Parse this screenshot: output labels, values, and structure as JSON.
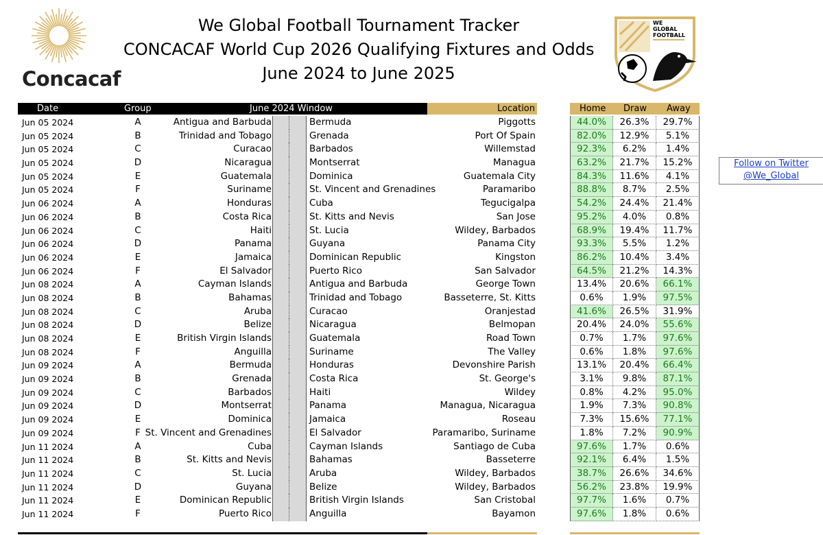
{
  "header": {
    "brand": "Concacaf",
    "title_line1": "We Global Football Tournament Tracker",
    "title_line2": "CONCACAF World Cup 2026 Qualifying Fixtures and Odds",
    "title_line3": "June 2024 to June 2025",
    "logo_text": "WE GLOBAL FOOTBALL"
  },
  "twitter": {
    "line1": "Follow on Twitter",
    "line2": "@We_Global"
  },
  "columns": {
    "date": "Date",
    "group": "Group",
    "window": "June 2024 Window",
    "location": "Location",
    "home": "Home",
    "draw": "Draw",
    "away": "Away"
  },
  "colors": {
    "gold": "#d8b76a",
    "highlight_bg": "#ccf3cc",
    "highlight_text": "#1a7a1a",
    "link": "#1a3ec8"
  },
  "rows": [
    {
      "date": "Jun 05 2024",
      "group": "A",
      "home": "Antigua and Barbuda",
      "away": "Bermuda",
      "location": "Piggotts",
      "h": "44.0%",
      "d": "26.3%",
      "a": "29.7%",
      "hl": "h"
    },
    {
      "date": "Jun 05 2024",
      "group": "B",
      "home": "Trinidad and Tobago",
      "away": "Grenada",
      "location": "Port Of Spain",
      "h": "82.0%",
      "d": "12.9%",
      "a": "5.1%",
      "hl": "h"
    },
    {
      "date": "Jun 05 2024",
      "group": "C",
      "home": "Curacao",
      "away": "Barbados",
      "location": "Willemstad",
      "h": "92.3%",
      "d": "6.2%",
      "a": "1.4%",
      "hl": "h"
    },
    {
      "date": "Jun 05 2024",
      "group": "D",
      "home": "Nicaragua",
      "away": "Montserrat",
      "location": "Managua",
      "h": "63.2%",
      "d": "21.7%",
      "a": "15.2%",
      "hl": "h"
    },
    {
      "date": "Jun 05 2024",
      "group": "E",
      "home": "Guatemala",
      "away": "Dominica",
      "location": "Guatemala City",
      "h": "84.3%",
      "d": "11.6%",
      "a": "4.1%",
      "hl": "h"
    },
    {
      "date": "Jun 05 2024",
      "group": "F",
      "home": "Suriname",
      "away": "St. Vincent and Grenadines",
      "location": "Paramaribo",
      "h": "88.8%",
      "d": "8.7%",
      "a": "2.5%",
      "hl": "h"
    },
    {
      "date": "Jun 06 2024",
      "group": "A",
      "home": "Honduras",
      "away": "Cuba",
      "location": "Tegucigalpa",
      "h": "54.2%",
      "d": "24.4%",
      "a": "21.4%",
      "hl": "h"
    },
    {
      "date": "Jun 06 2024",
      "group": "B",
      "home": "Costa Rica",
      "away": "St. Kitts and Nevis",
      "location": "San Jose",
      "h": "95.2%",
      "d": "4.0%",
      "a": "0.8%",
      "hl": "h"
    },
    {
      "date": "Jun 06 2024",
      "group": "C",
      "home": "Haiti",
      "away": "St. Lucia",
      "location": "Wildey, Barbados",
      "h": "68.9%",
      "d": "19.4%",
      "a": "11.7%",
      "hl": "h"
    },
    {
      "date": "Jun 06 2024",
      "group": "D",
      "home": "Panama",
      "away": "Guyana",
      "location": "Panama City",
      "h": "93.3%",
      "d": "5.5%",
      "a": "1.2%",
      "hl": "h"
    },
    {
      "date": "Jun 06 2024",
      "group": "E",
      "home": "Jamaica",
      "away": "Dominican Republic",
      "location": "Kingston",
      "h": "86.2%",
      "d": "10.4%",
      "a": "3.4%",
      "hl": "h"
    },
    {
      "date": "Jun 06 2024",
      "group": "F",
      "home": "El Salvador",
      "away": "Puerto Rico",
      "location": "San Salvador",
      "h": "64.5%",
      "d": "21.2%",
      "a": "14.3%",
      "hl": "h"
    },
    {
      "date": "Jun 08 2024",
      "group": "A",
      "home": "Cayman Islands",
      "away": "Antigua and Barbuda",
      "location": "George Town",
      "h": "13.4%",
      "d": "20.6%",
      "a": "66.1%",
      "hl": "a"
    },
    {
      "date": "Jun 08 2024",
      "group": "B",
      "home": "Bahamas",
      "away": "Trinidad and Tobago",
      "location": "Basseterre, St. Kitts",
      "h": "0.6%",
      "d": "1.9%",
      "a": "97.5%",
      "hl": "a"
    },
    {
      "date": "Jun 08 2024",
      "group": "C",
      "home": "Aruba",
      "away": "Curacao",
      "location": "Oranjestad",
      "h": "41.6%",
      "d": "26.5%",
      "a": "31.9%",
      "hl": "h"
    },
    {
      "date": "Jun 08 2024",
      "group": "D",
      "home": "Belize",
      "away": "Nicaragua",
      "location": "Belmopan",
      "h": "20.4%",
      "d": "24.0%",
      "a": "55.6%",
      "hl": "a"
    },
    {
      "date": "Jun 08 2024",
      "group": "E",
      "home": "British Virgin Islands",
      "away": "Guatemala",
      "location": "Road Town",
      "h": "0.7%",
      "d": "1.7%",
      "a": "97.6%",
      "hl": "a"
    },
    {
      "date": "Jun 08 2024",
      "group": "F",
      "home": "Anguilla",
      "away": "Suriname",
      "location": "The Valley",
      "h": "0.6%",
      "d": "1.8%",
      "a": "97.6%",
      "hl": "a"
    },
    {
      "date": "Jun 09 2024",
      "group": "A",
      "home": "Bermuda",
      "away": "Honduras",
      "location": "Devonshire Parish",
      "h": "13.1%",
      "d": "20.4%",
      "a": "66.4%",
      "hl": "a"
    },
    {
      "date": "Jun 09 2024",
      "group": "B",
      "home": "Grenada",
      "away": "Costa Rica",
      "location": "St. George's",
      "h": "3.1%",
      "d": "9.8%",
      "a": "87.1%",
      "hl": "a"
    },
    {
      "date": "Jun 09 2024",
      "group": "C",
      "home": "Barbados",
      "away": "Haiti",
      "location": "Wildey",
      "h": "0.8%",
      "d": "4.2%",
      "a": "95.0%",
      "hl": "a"
    },
    {
      "date": "Jun 09 2024",
      "group": "D",
      "home": "Montserrat",
      "away": "Panama",
      "location": "Managua, Nicaragua",
      "h": "1.9%",
      "d": "7.3%",
      "a": "90.8%",
      "hl": "a"
    },
    {
      "date": "Jun 09 2024",
      "group": "E",
      "home": "Dominica",
      "away": "Jamaica",
      "location": "Roseau",
      "h": "7.3%",
      "d": "15.6%",
      "a": "77.1%",
      "hl": "a"
    },
    {
      "date": "Jun 09 2024",
      "group": "F",
      "home": "St. Vincent and Grenadines",
      "away": "El Salvador",
      "location": "Paramaribo, Suriname",
      "h": "1.8%",
      "d": "7.2%",
      "a": "90.9%",
      "hl": "a"
    },
    {
      "date": "Jun 11 2024",
      "group": "A",
      "home": "Cuba",
      "away": "Cayman Islands",
      "location": "Santiago de Cuba",
      "h": "97.6%",
      "d": "1.7%",
      "a": "0.6%",
      "hl": "h"
    },
    {
      "date": "Jun 11 2024",
      "group": "B",
      "home": "St. Kitts and Nevis",
      "away": "Bahamas",
      "location": "Basseterre",
      "h": "92.1%",
      "d": "6.4%",
      "a": "1.5%",
      "hl": "h"
    },
    {
      "date": "Jun 11 2024",
      "group": "C",
      "home": "St. Lucia",
      "away": "Aruba",
      "location": "Wildey, Barbados",
      "h": "38.7%",
      "d": "26.6%",
      "a": "34.6%",
      "hl": "h"
    },
    {
      "date": "Jun 11 2024",
      "group": "D",
      "home": "Guyana",
      "away": "Belize",
      "location": "Wildey, Barbados",
      "h": "56.2%",
      "d": "23.8%",
      "a": "19.9%",
      "hl": "h"
    },
    {
      "date": "Jun 11 2024",
      "group": "E",
      "home": "Dominican Republic",
      "away": "British Virgin Islands",
      "location": "San Cristobal",
      "h": "97.7%",
      "d": "1.6%",
      "a": "0.7%",
      "hl": "h"
    },
    {
      "date": "Jun 11 2024",
      "group": "F",
      "home": "Puerto Rico",
      "away": "Anguilla",
      "location": "Bayamon",
      "h": "97.6%",
      "d": "1.8%",
      "a": "0.6%",
      "hl": "h"
    }
  ]
}
